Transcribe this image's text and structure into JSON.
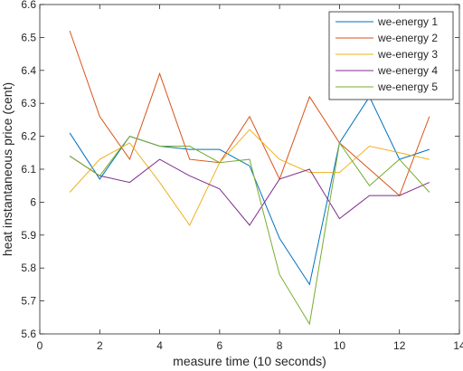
{
  "chart_data": {
    "type": "line",
    "title": "",
    "xlabel": "measure time (10 seconds)",
    "ylabel": "heat instantaneous price (cent)",
    "xlim": [
      0,
      14
    ],
    "ylim": [
      5.6,
      6.6
    ],
    "xticks": [
      0,
      2,
      4,
      6,
      8,
      10,
      12,
      14
    ],
    "xtick_labels": [
      "0",
      "2",
      "4",
      "6",
      "8",
      "10",
      "12",
      "14"
    ],
    "yticks": [
      5.6,
      5.7,
      5.8,
      5.9,
      6.0,
      6.1,
      6.2,
      6.3,
      6.4,
      6.5,
      6.6
    ],
    "ytick_labels": [
      "5.6",
      "5.7",
      "5.8",
      "5.9",
      "6",
      "6.1",
      "6.2",
      "6.3",
      "6.4",
      "6.5",
      "6.6"
    ],
    "grid": false,
    "legend_position": "top-right",
    "x": [
      1,
      2,
      3,
      4,
      5,
      6,
      7,
      8,
      9,
      10,
      11,
      12,
      13
    ],
    "series": [
      {
        "name": "we-energy 1",
        "color": "#0072BD",
        "values": [
          6.21,
          6.07,
          6.2,
          6.17,
          6.16,
          6.16,
          6.11,
          5.89,
          5.75,
          6.18,
          6.32,
          6.13,
          6.16
        ]
      },
      {
        "name": "we-energy 2",
        "color": "#D95319",
        "values": [
          6.52,
          6.26,
          6.13,
          6.39,
          6.13,
          6.12,
          6.26,
          6.07,
          6.32,
          6.18,
          6.1,
          6.02,
          6.26
        ]
      },
      {
        "name": "we-energy 3",
        "color": "#EDB120",
        "values": [
          6.03,
          6.13,
          6.18,
          6.06,
          5.93,
          6.12,
          6.22,
          6.13,
          6.09,
          6.09,
          6.17,
          6.15,
          6.13
        ]
      },
      {
        "name": "we-energy 4",
        "color": "#7E2F8E",
        "values": [
          6.14,
          6.08,
          6.06,
          6.13,
          6.08,
          6.04,
          5.93,
          6.07,
          6.1,
          5.95,
          6.02,
          6.02,
          6.06
        ]
      },
      {
        "name": "we-energy 5",
        "color": "#77AC30",
        "values": [
          6.14,
          6.08,
          6.2,
          6.17,
          6.17,
          6.12,
          6.13,
          5.78,
          5.63,
          6.18,
          6.05,
          6.13,
          6.03
        ]
      }
    ]
  }
}
